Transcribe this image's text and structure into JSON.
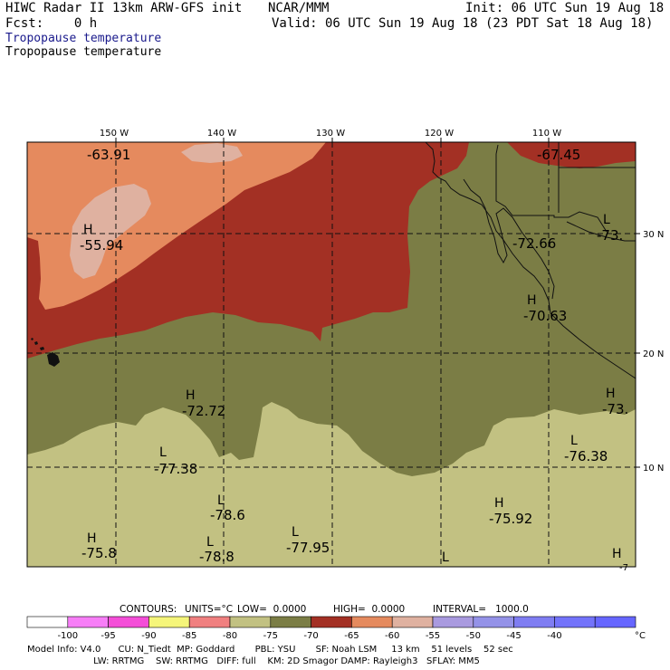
{
  "header": {
    "title": "HIWC Radar II 13km ARW-GFS init",
    "org": "NCAR/MMM",
    "init": "Init: 06 UTC Sun 19 Aug 18",
    "fcst": "Fcst:    0 h",
    "valid": "Valid: 06 UTC Sun 19 Aug 18 (23 PDT Sat 18 Aug 18)",
    "field_line1": "Tropopause temperature",
    "field_line2": "Tropopause temperature"
  },
  "axes": {
    "lon_labels": [
      "150 W",
      "140 W",
      "130 W",
      "120 W",
      "110 W"
    ],
    "lat_labels": [
      "30 N",
      "20 N",
      "10 N"
    ]
  },
  "extrema": [
    {
      "type": "",
      "value": "-63.91"
    },
    {
      "type": "H",
      "value": "-55.94"
    },
    {
      "type": "",
      "value": "-67.45"
    },
    {
      "type": "L",
      "value": "-73."
    },
    {
      "type": "",
      "value": "-72.66"
    },
    {
      "type": "H",
      "value": "-70.63"
    },
    {
      "type": "H",
      "value": "-72.72"
    },
    {
      "type": "H",
      "value": "-73."
    },
    {
      "type": "L",
      "value": "-77.38"
    },
    {
      "type": "L",
      "value": "-76.38"
    },
    {
      "type": "L",
      "value": "-78.6"
    },
    {
      "type": "H",
      "value": "-75.92"
    },
    {
      "type": "H",
      "value": "-75.8"
    },
    {
      "type": "L",
      "value": "-78.8"
    },
    {
      "type": "L",
      "value": "-77.95"
    },
    {
      "type": "L",
      "value": ""
    },
    {
      "type": "H",
      "value": "-7"
    }
  ],
  "contour_info": {
    "contours": "CONTOURS:",
    "units": "UNITS=°C",
    "low": "LOW=  0.0000",
    "high": "HIGH=  0.0000",
    "interval": "INTERVAL=   1000.0"
  },
  "colorbar": {
    "colors": [
      "#ffffff",
      "#f77ef7",
      "#f44ed8",
      "#f5f57a",
      "#f08080",
      "#c2c182",
      "#7b7d45",
      "#a33024",
      "#e58a5e",
      "#dfb1a0",
      "#a99adf",
      "#9492e8",
      "#7f7df2",
      "#7373fa",
      "#6666ff"
    ],
    "labels": [
      "-100",
      "-95",
      "-90",
      "-85",
      "-80",
      "-75",
      "-70",
      "-65",
      "-60",
      "-55",
      "-50",
      "-45",
      "-40"
    ],
    "unit": "°C"
  },
  "footer": {
    "line1": "Model Info: V4.0      CU: N_Tiedt  MP: Goddard       PBL: YSU       SF: Noah LSM     13 km    51 levels    52 sec",
    "line2": "                       LW: RRTMG    SW: RRTMG   DIFF: full    KM: 2D Smagor DAMP: Rayleigh3   SFLAY: MM5"
  },
  "colors": {
    "orange": "#e58a5e",
    "pink": "#dfb1a0",
    "red": "#a33024",
    "olive": "#7b7d45",
    "khaki": "#c2c182",
    "title_blue": "#1a1a8c"
  }
}
